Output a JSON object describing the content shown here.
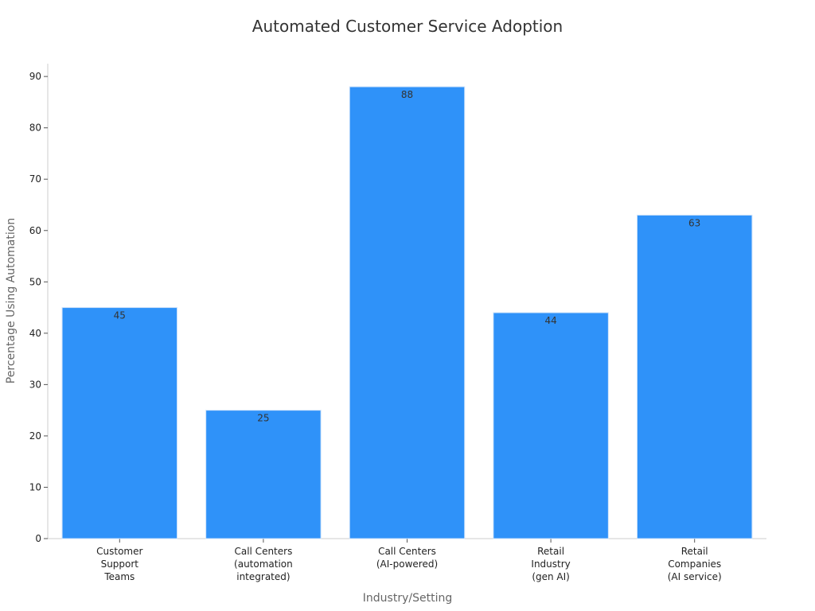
{
  "chart_data": {
    "type": "bar",
    "title": "Automated Customer Service Adoption",
    "xlabel": "Industry/Setting",
    "ylabel": "Percentage Using Automation",
    "categories": [
      [
        "Customer",
        "Support",
        "Teams"
      ],
      [
        "Call Centers",
        "(automation",
        "integrated)"
      ],
      [
        "Call Centers",
        "(AI-powered)"
      ],
      [
        "Retail",
        "Industry",
        "(gen AI)"
      ],
      [
        "Retail",
        "Companies",
        "(AI service)"
      ]
    ],
    "values": [
      45,
      25,
      88,
      44,
      63
    ],
    "value_labels": [
      "45",
      "25",
      "88",
      "44",
      "63"
    ],
    "ylim": [
      0,
      92.5
    ],
    "yticks": [
      0,
      10,
      20,
      30,
      40,
      50,
      60,
      70,
      80,
      90
    ],
    "ytick_labels": [
      "0",
      "10",
      "20",
      "30",
      "40",
      "50",
      "60",
      "70",
      "80",
      "90"
    ],
    "grid": false,
    "legend": "none",
    "bar_color": "#2f92f9",
    "bar_edge_color": "#cfe3fa"
  }
}
